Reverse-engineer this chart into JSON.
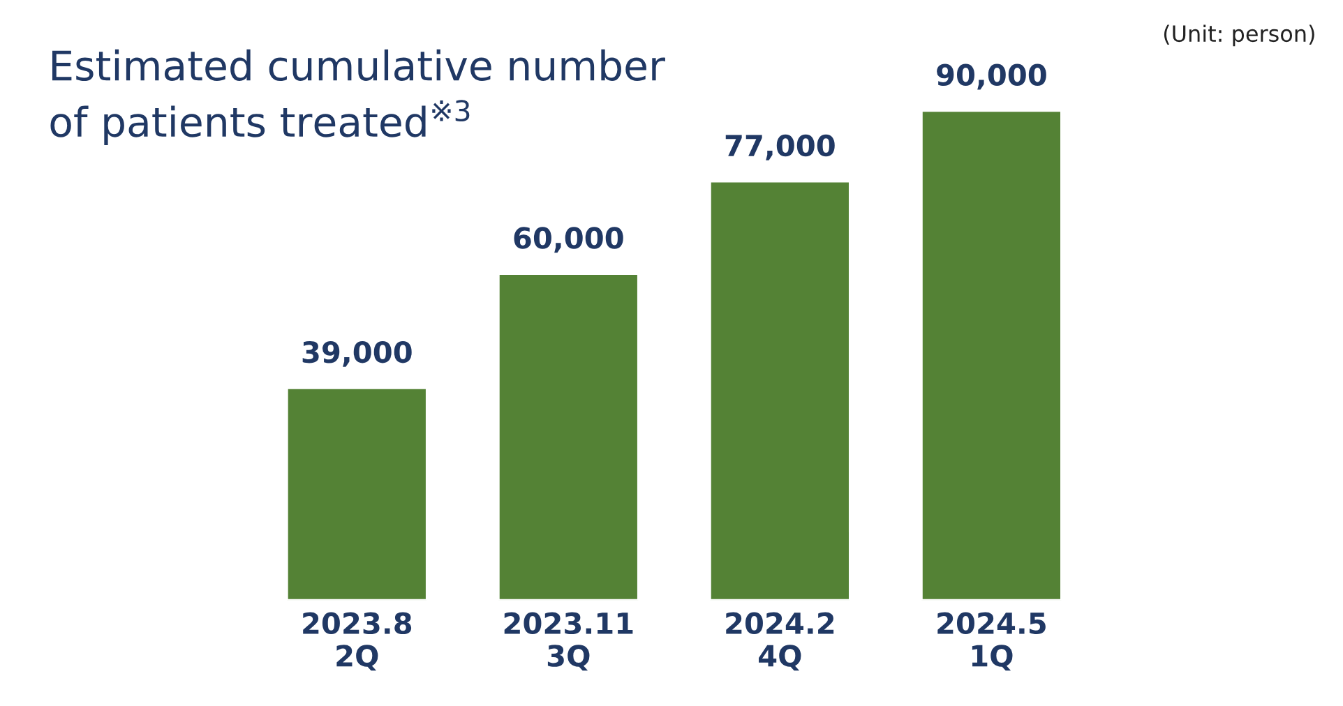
{
  "chart_data": {
    "type": "bar",
    "title": "Estimated cumulative number\nof patients treated$^{※3}$",
    "annotations": [
      "(Unit: person)"
    ],
    "categories": [
      "2023.8\n2Q",
      "2023.11\n3Q",
      "2024.2\n4Q",
      "2024.5\n1Q"
    ],
    "values": [
      39000,
      60000,
      77000,
      90000
    ],
    "color": "#548235",
    "value_labels": [
      "39,000",
      "60,000",
      "77,000",
      "90,000"
    ]
  }
}
